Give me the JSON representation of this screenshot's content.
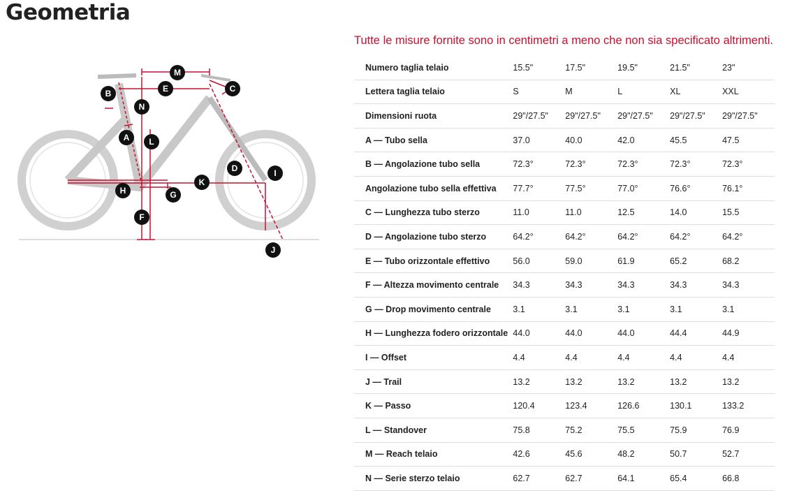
{
  "header": {
    "title": "Geometria",
    "note": "Tutte le misure fornite sono in centimetri a meno che non sia specificato altrimenti."
  },
  "diagram": {
    "labels": [
      "M",
      "E",
      "C",
      "B",
      "N",
      "A",
      "L",
      "D",
      "I",
      "K",
      "H",
      "G",
      "F",
      "J"
    ]
  },
  "table": {
    "rows": [
      [
        "Numero taglia telaio",
        "15.5\"",
        "17.5\"",
        "19.5\"",
        "21.5\"",
        "23\""
      ],
      [
        "Lettera taglia telaio",
        "S",
        "M",
        "L",
        "XL",
        "XXL"
      ],
      [
        "Dimensioni ruota",
        "29\"/27.5\"",
        "29\"/27.5\"",
        "29\"/27.5\"",
        "29\"/27.5\"",
        "29\"/27.5\""
      ],
      [
        "A — Tubo sella",
        "37.0",
        "40.0",
        "42.0",
        "45.5",
        "47.5"
      ],
      [
        "B — Angolazione tubo sella",
        "72.3°",
        "72.3°",
        "72.3°",
        "72.3°",
        "72.3°"
      ],
      [
        "Angolazione tubo sella effettiva",
        "77.7°",
        "77.5°",
        "77.0°",
        "76.6°",
        "76.1°"
      ],
      [
        "C — Lunghezza tubo sterzo",
        "11.0",
        "11.0",
        "12.5",
        "14.0",
        "15.5"
      ],
      [
        "D — Angolazione tubo sterzo",
        "64.2°",
        "64.2°",
        "64.2°",
        "64.2°",
        "64.2°"
      ],
      [
        "E — Tubo orizzontale effettivo",
        "56.0",
        "59.0",
        "61.9",
        "65.2",
        "68.2"
      ],
      [
        "F — Altezza movimento centrale",
        "34.3",
        "34.3",
        "34.3",
        "34.3",
        "34.3"
      ],
      [
        "G — Drop movimento centrale",
        "3.1",
        "3.1",
        "3.1",
        "3.1",
        "3.1"
      ],
      [
        "H — Lunghezza fodero orizzontale",
        "44.0",
        "44.0",
        "44.0",
        "44.4",
        "44.9"
      ],
      [
        "I — Offset",
        "4.4",
        "4.4",
        "4.4",
        "4.4",
        "4.4"
      ],
      [
        "J — Trail",
        "13.2",
        "13.2",
        "13.2",
        "13.2",
        "13.2"
      ],
      [
        "K — Passo",
        "120.4",
        "123.4",
        "126.6",
        "130.1",
        "133.2"
      ],
      [
        "L — Standover",
        "75.8",
        "75.2",
        "75.5",
        "75.9",
        "76.9"
      ],
      [
        "M — Reach telaio",
        "42.6",
        "45.6",
        "48.2",
        "50.7",
        "52.7"
      ],
      [
        "N — Serie sterzo telaio",
        "62.7",
        "62.7",
        "64.1",
        "65.4",
        "66.8"
      ]
    ]
  }
}
